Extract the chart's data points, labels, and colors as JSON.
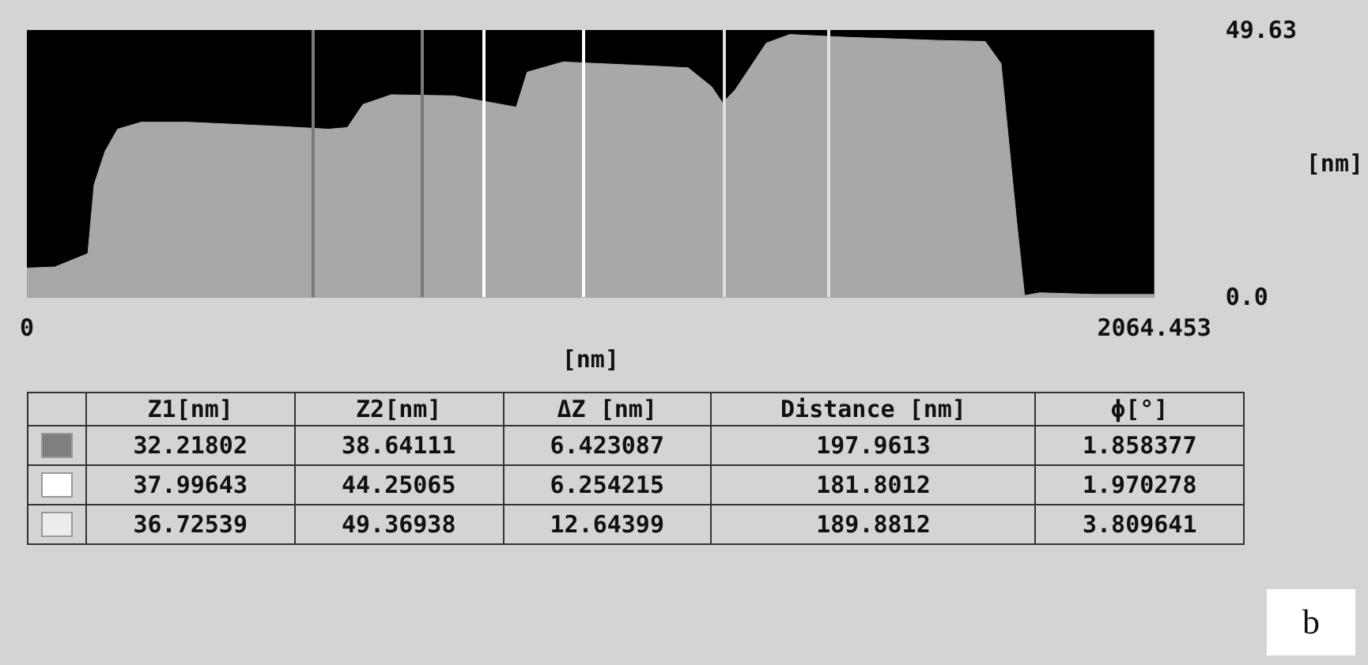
{
  "chart_data": [
    {
      "type": "area",
      "xlabel": "[nm]",
      "ylabel": "[nm]",
      "xlim": [
        0,
        2064.453
      ],
      "xticks": [
        0,
        2064.453
      ],
      "ylim": [
        0,
        49.63
      ],
      "yticks": [
        {
          "value": 0,
          "label": "0.0"
        },
        49.63
      ],
      "grid": false,
      "x": [
        0,
        51.5,
        111.7,
        123.1,
        143.2,
        166.1,
        209,
        294.9,
        466.7,
        552.6,
        586.9,
        615.5,
        667.1,
        781.6,
        896.1,
        916.2,
        982,
        1153.8,
        1211,
        1254,
        1274,
        1297,
        1354,
        1397,
        1497,
        1669,
        1755,
        1784,
        1812,
        1827,
        1855,
        1955,
        2064.453
      ],
      "series": [
        {
          "color": "#a8a8a8",
          "values": [
            5.4,
            5.6,
            8.1,
            20.9,
            27.1,
            31.2,
            32.5,
            32.5,
            31.7,
            31.2,
            31.5,
            35.8,
            37.6,
            37.4,
            35.3,
            41.8,
            43.7,
            42.9,
            42.6,
            39.1,
            36.1,
            38.5,
            47.2,
            48.8,
            48.3,
            47.7,
            47.5,
            43.4,
            14.6,
            0.3,
            0.8,
            0.5,
            0.5
          ]
        }
      ],
      "ref_lines": [
        {
          "axis": "x",
          "value": 524,
          "color": "#7a7a7a"
        },
        {
          "axis": "x",
          "value": 724,
          "color": "#7a7a7a"
        },
        {
          "axis": "x",
          "value": 836,
          "color": "#ffffff"
        },
        {
          "axis": "x",
          "value": 1019,
          "color": "#ffffff"
        },
        {
          "axis": "x",
          "value": 1277,
          "color": "#e0e0e0"
        },
        {
          "axis": "x",
          "value": 1469,
          "color": "#e0e0e0"
        }
      ],
      "annotations": [
        "b"
      ]
    },
    {
      "type": "other",
      "data_labels": true,
      "categories": [
        "Z1[nm]",
        "Z2[nm]",
        "ΔZ [nm]",
        "Distance [nm]",
        "ϕ[°]"
      ],
      "series": [
        {
          "color": "#7f7f7f",
          "values": [
            32.21802,
            38.64111,
            6.423087,
            197.9613,
            1.858377
          ]
        },
        {
          "color": "#ffffff",
          "values": [
            37.99643,
            44.25065,
            6.254215,
            181.8012,
            1.970278
          ]
        },
        {
          "color": "#ececec",
          "values": [
            36.72539,
            49.36938,
            12.64399,
            189.8812,
            3.809641
          ]
        }
      ]
    }
  ]
}
